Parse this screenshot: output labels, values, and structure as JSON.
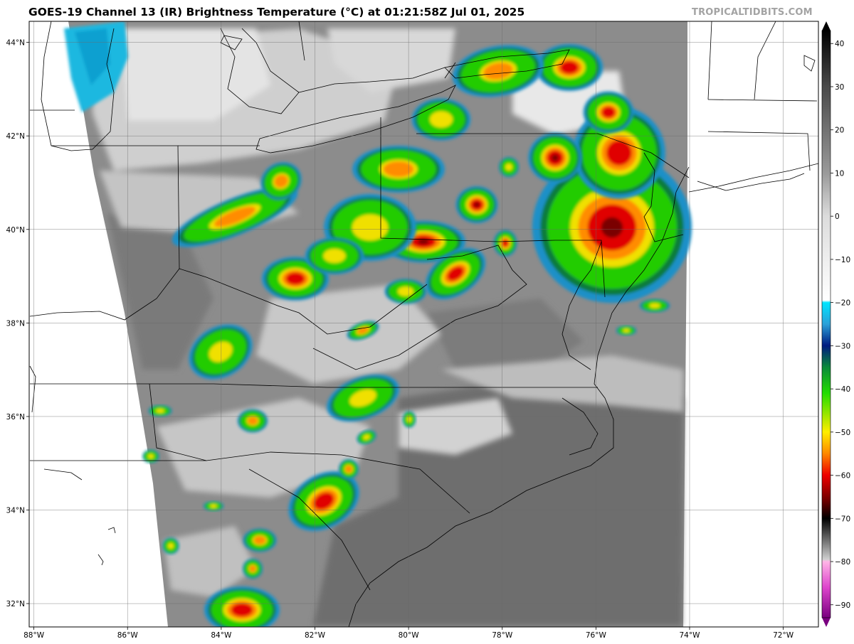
{
  "title": "GOES-19 Channel 13 (IR) Brightness Temperature (°C) at 01:21:58Z Jul 01, 2025",
  "credit": "TROPICALTIDBITS.COM",
  "map": {
    "lon_range": [
      -88.1,
      -71.25
    ],
    "lat_range": [
      31.5,
      44.45
    ],
    "lon_ticks": [
      {
        "value": -88,
        "label": "88°W"
      },
      {
        "value": -86,
        "label": "86°W"
      },
      {
        "value": -84,
        "label": "84°W"
      },
      {
        "value": -82,
        "label": "82°W"
      },
      {
        "value": -80,
        "label": "80°W"
      },
      {
        "value": -78,
        "label": "78°W"
      },
      {
        "value": -76,
        "label": "76°W"
      },
      {
        "value": -74,
        "label": "74°W"
      },
      {
        "value": -72,
        "label": "72°W"
      }
    ],
    "lat_ticks": [
      {
        "value": 44,
        "label": "44°N"
      },
      {
        "value": 42,
        "label": "42°N"
      },
      {
        "value": 40,
        "label": "40°N"
      },
      {
        "value": 38,
        "label": "38°N"
      },
      {
        "value": 36,
        "label": "36°N"
      },
      {
        "value": 34,
        "label": "34°N"
      },
      {
        "value": 32,
        "label": "32°N"
      }
    ]
  },
  "colorbar": {
    "ticks": [
      {
        "value": 40,
        "label": "40"
      },
      {
        "value": 30,
        "label": "30"
      },
      {
        "value": 20,
        "label": "20"
      },
      {
        "value": 10,
        "label": "10"
      },
      {
        "value": 0,
        "label": "0"
      },
      {
        "value": -10,
        "label": "−10"
      },
      {
        "value": -20,
        "label": "−20"
      },
      {
        "value": -30,
        "label": "−30"
      },
      {
        "value": -40,
        "label": "−40"
      },
      {
        "value": -50,
        "label": "−50"
      },
      {
        "value": -60,
        "label": "−60"
      },
      {
        "value": -70,
        "label": "−70"
      },
      {
        "value": -80,
        "label": "−80"
      },
      {
        "value": -90,
        "label": "−90"
      }
    ],
    "range": [
      -93,
      43
    ],
    "stops": [
      {
        "t": 43,
        "color": "#000000"
      },
      {
        "t": 30,
        "color": "#4a4a4a"
      },
      {
        "t": 10,
        "color": "#9a9a9a"
      },
      {
        "t": 0,
        "color": "#dcdcdc"
      },
      {
        "t": -19.5,
        "color": "#ffffff"
      },
      {
        "t": -20,
        "color": "#00e5ff"
      },
      {
        "t": -25,
        "color": "#2aa0d8"
      },
      {
        "t": -30,
        "color": "#001a80"
      },
      {
        "t": -35,
        "color": "#0a8a3a"
      },
      {
        "t": -41,
        "color": "#22dd00"
      },
      {
        "t": -50,
        "color": "#ffee00"
      },
      {
        "t": -55,
        "color": "#ff8800"
      },
      {
        "t": -60,
        "color": "#ee0000"
      },
      {
        "t": -66,
        "color": "#6a0000"
      },
      {
        "t": -70,
        "color": "#000000"
      },
      {
        "t": -79.5,
        "color": "#d0d0d0"
      },
      {
        "t": -80,
        "color": "#ffb4e6"
      },
      {
        "t": -86,
        "color": "#dd44cc"
      },
      {
        "t": -93,
        "color": "#7a0080"
      }
    ]
  }
}
